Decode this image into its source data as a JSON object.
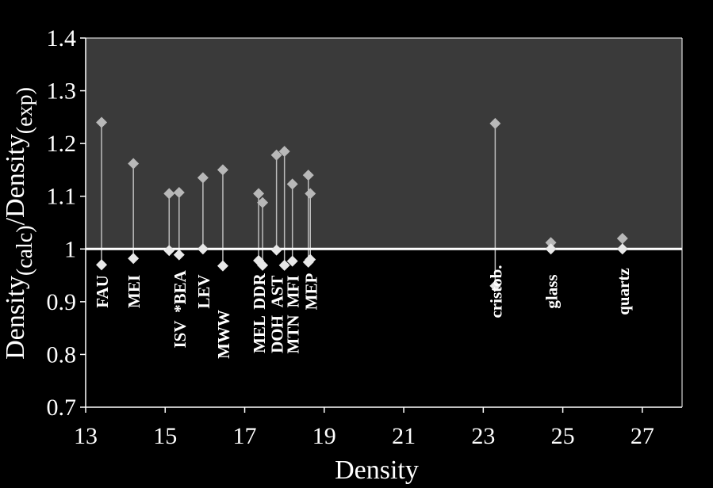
{
  "chart_data": {
    "type": "scatter",
    "xlabel": "Density",
    "ylabel": {
      "base": "Density",
      "calc": "(calc)",
      "slash": "/Density",
      "exp": "(exp)"
    },
    "xlim": [
      13,
      28
    ],
    "ylim": [
      0.7,
      1.4
    ],
    "x_ticks": [
      13,
      15,
      17,
      19,
      21,
      23,
      25,
      27
    ],
    "y_ticks": [
      0.7,
      0.8,
      0.9,
      1.0,
      1.1,
      1.2,
      1.3,
      1.4
    ],
    "y_tick_labels": [
      "0.7",
      "0.8",
      "0.9",
      "1",
      "1.1",
      "1.2",
      "1.3",
      "1.4"
    ],
    "reference_line": 1.0,
    "colors": {
      "upper_region": "#3a3a3a",
      "lower_region": "#000000",
      "upper_marker": "#b8b8b8",
      "lower_marker": "#e8e8e8",
      "stem": "#bdbdbd",
      "reference_line": "#ffffff",
      "text": "#ffffff"
    },
    "series": [
      {
        "values_high": "upper",
        "role": "high"
      },
      {
        "values_low": "lower",
        "role": "low"
      }
    ],
    "points": [
      {
        "x": 13.4,
        "high": 1.24,
        "low": 0.97
      },
      {
        "x": 14.2,
        "high": 1.162,
        "low": 0.982
      },
      {
        "x": 15.1,
        "high": 1.105,
        "low": 0.997
      },
      {
        "x": 15.35,
        "high": 1.107,
        "low": 0.989
      },
      {
        "x": 15.95,
        "high": 1.135,
        "low": 1.0
      },
      {
        "x": 16.45,
        "high": 1.15,
        "low": 0.968
      },
      {
        "x": 17.35,
        "high": 1.105,
        "low": 0.978
      },
      {
        "x": 17.45,
        "high": 1.088,
        "low": 0.969
      },
      {
        "x": 17.8,
        "high": 1.178,
        "low": 0.998
      },
      {
        "x": 18.0,
        "high": 1.185,
        "low": 0.969
      },
      {
        "x": 18.2,
        "high": 1.123,
        "low": 0.977
      },
      {
        "x": 18.6,
        "high": 1.14,
        "low": 0.975
      },
      {
        "x": 18.65,
        "high": 1.105,
        "low": 0.98
      },
      {
        "x": 23.3,
        "high": 1.238,
        "low": 0.93
      },
      {
        "x": 24.7,
        "high": 1.012,
        "low": 1.0
      },
      {
        "x": 26.5,
        "high": 1.02,
        "low": 1.0
      }
    ],
    "labels": [
      {
        "text": "FAU",
        "x": 13.4,
        "row": 1
      },
      {
        "text": "MEI",
        "x": 14.2,
        "row": 1
      },
      {
        "text": "*BEA",
        "x": 15.35,
        "row": 1
      },
      {
        "text": "ISV",
        "x": 15.35,
        "row": 2
      },
      {
        "text": "LEV",
        "x": 15.95,
        "row": 1
      },
      {
        "text": "MWW",
        "x": 16.45,
        "row": 2
      },
      {
        "text": "DDR",
        "x": 17.35,
        "row": 1
      },
      {
        "text": "MEL",
        "x": 17.35,
        "row": 2
      },
      {
        "text": "AST",
        "x": 17.8,
        "row": 1
      },
      {
        "text": "DOH",
        "x": 17.8,
        "row": 2
      },
      {
        "text": "MFI",
        "x": 18.2,
        "row": 1
      },
      {
        "text": "MTN",
        "x": 18.2,
        "row": 2
      },
      {
        "text": "MEP",
        "x": 18.65,
        "row": 1
      },
      {
        "text": "cristob.",
        "x": 23.3,
        "row": 1
      },
      {
        "text": "glass",
        "x": 24.7,
        "row": 1
      },
      {
        "text": "quartz",
        "x": 26.5,
        "row": 1
      }
    ]
  }
}
